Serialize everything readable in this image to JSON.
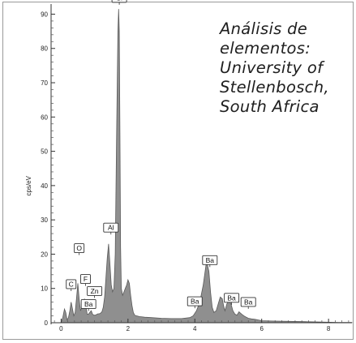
{
  "chart_data": {
    "type": "area",
    "ylabel": "cps/eV",
    "xlabel": "",
    "xlim": [
      -0.3,
      8.7
    ],
    "ylim": [
      0,
      92
    ],
    "x_ticks": [
      0,
      2,
      4,
      6,
      8
    ],
    "y_ticks": [
      0,
      10,
      20,
      30,
      40,
      50,
      60,
      70,
      80,
      90
    ],
    "fill_color": "#8f8f8f",
    "line_color": "#5a5a5a",
    "spectrum": {
      "x": [
        -0.3,
        0.0,
        0.05,
        0.1,
        0.14,
        0.18,
        0.22,
        0.26,
        0.3,
        0.34,
        0.38,
        0.42,
        0.46,
        0.5,
        0.54,
        0.58,
        0.62,
        0.66,
        0.7,
        0.74,
        0.78,
        0.82,
        0.86,
        0.9,
        0.94,
        0.98,
        1.02,
        1.06,
        1.1,
        1.14,
        1.18,
        1.22,
        1.26,
        1.3,
        1.34,
        1.38,
        1.42,
        1.46,
        1.5,
        1.54,
        1.58,
        1.62,
        1.66,
        1.7,
        1.72,
        1.74,
        1.76,
        1.78,
        1.8,
        1.84,
        1.88,
        1.92,
        1.96,
        2.0,
        2.04,
        2.08,
        2.12,
        2.16,
        2.2,
        2.26,
        2.34,
        2.5,
        2.7,
        3.0,
        3.3,
        3.6,
        3.85,
        3.95,
        4.05,
        4.15,
        4.25,
        4.35,
        4.42,
        4.47,
        4.52,
        4.57,
        4.64,
        4.7,
        4.76,
        4.82,
        4.86,
        4.9,
        4.96,
        5.02,
        5.08,
        5.14,
        5.2,
        5.26,
        5.32,
        5.4,
        5.5,
        5.6,
        5.7,
        5.8,
        5.9,
        6.0,
        6.3,
        6.8,
        7.3,
        7.8,
        8.3,
        8.7
      ],
      "y": [
        0,
        0,
        1.5,
        4,
        3,
        0.8,
        1.5,
        3.5,
        6,
        4,
        2,
        3,
        7,
        11.5,
        7,
        3.5,
        4.5,
        5.5,
        7,
        5,
        2.5,
        2.5,
        3,
        3.5,
        2.5,
        2.2,
        2.2,
        2.4,
        2.6,
        2.6,
        2.8,
        3.2,
        4.5,
        7.5,
        13,
        19,
        23,
        17,
        11,
        9,
        10,
        20,
        55,
        85,
        91.5,
        85,
        55,
        22,
        10,
        8,
        9,
        10,
        11,
        12.5,
        11.5,
        8,
        5,
        3,
        2.2,
        2,
        1.8,
        1.6,
        1.5,
        1.3,
        1.2,
        1.2,
        1.5,
        2,
        3.5,
        6,
        11,
        18,
        15,
        9,
        4.5,
        3,
        3.5,
        5.5,
        7.5,
        7,
        5,
        3.5,
        5.5,
        6.5,
        5.5,
        3.5,
        2.5,
        2.2,
        3.2,
        2.5,
        1.8,
        1.3,
        1.1,
        1.0,
        0.8,
        0.6,
        0.5,
        0.4,
        0.3,
        0.2,
        0.1,
        0.1
      ]
    },
    "peak_labels": [
      {
        "text": "Si",
        "x": 1.74,
        "y": 92.5
      },
      {
        "text": "Al",
        "x": 1.49,
        "y": 25.5
      },
      {
        "text": "O",
        "x": 0.54,
        "y": 19.5
      },
      {
        "text": "F",
        "x": 0.73,
        "y": 10.5
      },
      {
        "text": "C",
        "x": 0.3,
        "y": 9.0
      },
      {
        "text": "Zn",
        "x": 1.0,
        "y": 7.0
      },
      {
        "text": "Ba",
        "x": 0.82,
        "y": 3.2
      },
      {
        "text": "Ba",
        "x": 4.45,
        "y": 16.0
      },
      {
        "text": "Ba",
        "x": 4.0,
        "y": 4.0
      },
      {
        "text": "Ba",
        "x": 5.1,
        "y": 5.0
      },
      {
        "text": "Ba",
        "x": 5.6,
        "y": 3.8
      }
    ]
  },
  "annotation": {
    "lines": [
      "Análisis de",
      "elementos:",
      "University of",
      "Stellenbosch,",
      "South Africa"
    ]
  }
}
